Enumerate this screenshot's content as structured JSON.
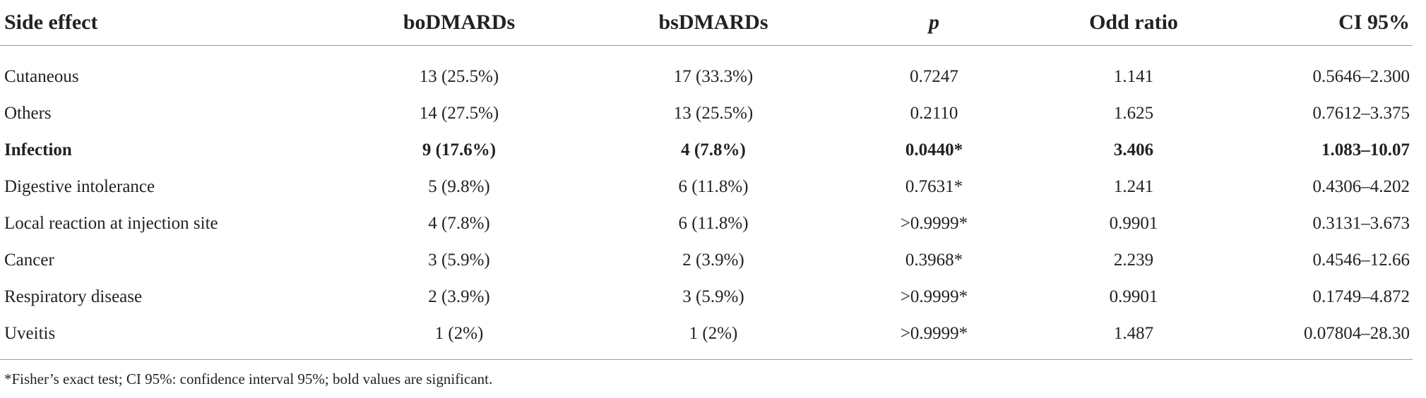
{
  "table": {
    "headers": [
      "Side effect",
      "boDMARDs",
      "bsDMARDs",
      "p",
      "Odd ratio",
      "CI 95%"
    ],
    "rows": [
      {
        "bold": false,
        "cells": [
          "Cutaneous",
          "13 (25.5%)",
          "17 (33.3%)",
          "0.7247",
          "1.141",
          "0.5646–2.300"
        ]
      },
      {
        "bold": false,
        "cells": [
          "Others",
          "14 (27.5%)",
          "13 (25.5%)",
          "0.2110",
          "1.625",
          "0.7612–3.375"
        ]
      },
      {
        "bold": true,
        "cells": [
          "Infection",
          "9 (17.6%)",
          "4 (7.8%)",
          "0.0440*",
          "3.406",
          "1.083–10.07"
        ]
      },
      {
        "bold": false,
        "cells": [
          "Digestive intolerance",
          "5 (9.8%)",
          "6 (11.8%)",
          "0.7631*",
          "1.241",
          "0.4306–4.202"
        ]
      },
      {
        "bold": false,
        "cells": [
          "Local reaction at injection site",
          "4 (7.8%)",
          "6 (11.8%)",
          ">0.9999*",
          "0.9901",
          "0.3131–3.673"
        ]
      },
      {
        "bold": false,
        "cells": [
          "Cancer",
          "3 (5.9%)",
          "2 (3.9%)",
          "0.3968*",
          "2.239",
          "0.4546–12.66"
        ]
      },
      {
        "bold": false,
        "cells": [
          "Respiratory disease",
          "2 (3.9%)",
          "3 (5.9%)",
          ">0.9999*",
          "0.9901",
          "0.1749–4.872"
        ]
      },
      {
        "bold": false,
        "cells": [
          "Uveitis",
          "1 (2%)",
          "1 (2%)",
          ">0.9999*",
          "1.487",
          "0.07804–28.30"
        ]
      }
    ]
  },
  "footnote": "*Fisher’s exact test; CI 95%: confidence interval 95%; bold values are significant."
}
